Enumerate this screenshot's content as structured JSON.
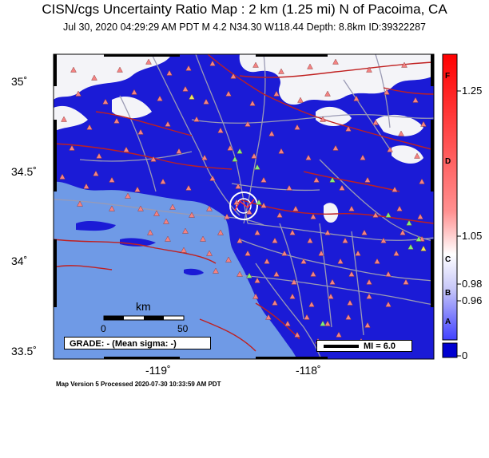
{
  "header": {
    "title": "CISN/cgs Uncertainty Ratio Map : 2 km (1.25 mi) N of Pacoima, CA",
    "subtitle": "Jul 30, 2020 04:29:29 AM PDT    M 4.2    N34.30 W118.44    Depth: 8.8km    ID:39322287"
  },
  "axes": {
    "lat_labels": [
      "35˚",
      "34.5˚",
      "34˚",
      "33.5˚"
    ],
    "lon_labels": [
      "-119˚",
      "-118˚"
    ]
  },
  "scale_bar": {
    "unit": "km",
    "tick_start": "0",
    "tick_end": "50"
  },
  "grade_box": {
    "text": "GRADE: - (Mean sigma: -)"
  },
  "mi_legend": {
    "text": "MI = 6.0"
  },
  "colorbar": {
    "value_labels": [
      "1.25",
      "1.05",
      "0.98",
      "0.96",
      "0"
    ],
    "grade_letters": [
      "F",
      "D",
      "C",
      "B",
      "A"
    ],
    "colors": {
      "high": "#ff0000",
      "mid": "#ffffff",
      "low": "#0000ff"
    }
  },
  "footer": {
    "text": "Map Version 5 Processed 2020-07-30 10:33:59 AM PDT"
  },
  "colors": {
    "uncertainty_blue": "#1b1bd6",
    "ocean": "#6f9ae6",
    "station_red": "#f48282",
    "station_green": "#7ef07a",
    "station_yellow": "#e8e85a",
    "fault": "#c02020",
    "road": "#9a9ab4"
  },
  "map": {
    "epicenter": {
      "lat": 34.3,
      "lon": -118.44
    },
    "extent": {
      "lat_min": 33.47,
      "lat_max": 35.17,
      "lon_min": -119.58,
      "lon_max": -117.28
    }
  }
}
